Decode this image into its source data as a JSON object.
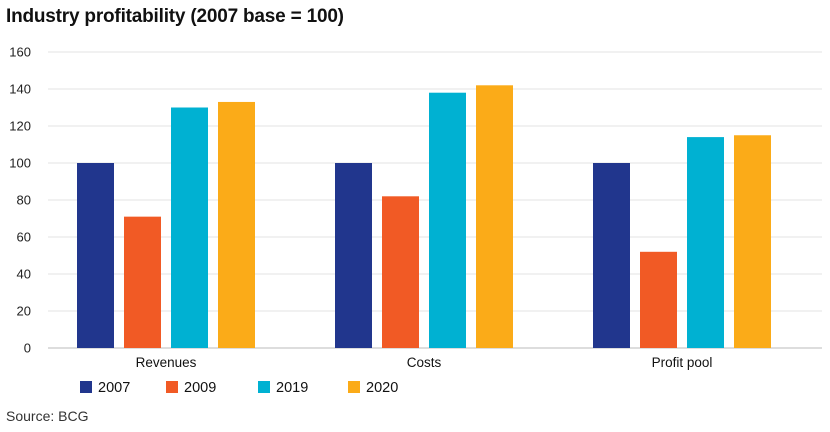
{
  "title": "Industry profitability (2007 base = 100)",
  "source": "Source: BCG",
  "chart_data": {
    "type": "bar",
    "title": "Industry profitability (2007 base = 100)",
    "categories": [
      "Revenues",
      "Costs",
      "Profit pool"
    ],
    "series": [
      {
        "name": "2007",
        "color": "#21368d",
        "values": [
          100,
          100,
          100
        ]
      },
      {
        "name": "2009",
        "color": "#f15a25",
        "values": [
          71,
          82,
          52
        ]
      },
      {
        "name": "2019",
        "color": "#00b1d2",
        "values": [
          130,
          138,
          114
        ]
      },
      {
        "name": "2020",
        "color": "#fbab18",
        "values": [
          133,
          142,
          115
        ]
      }
    ],
    "yticks": [
      0,
      20,
      40,
      60,
      80,
      100,
      120,
      140,
      160
    ],
    "ylim": [
      0,
      160
    ],
    "xlabel": "",
    "ylabel": "",
    "grid": true,
    "legend": "bottom-left"
  }
}
